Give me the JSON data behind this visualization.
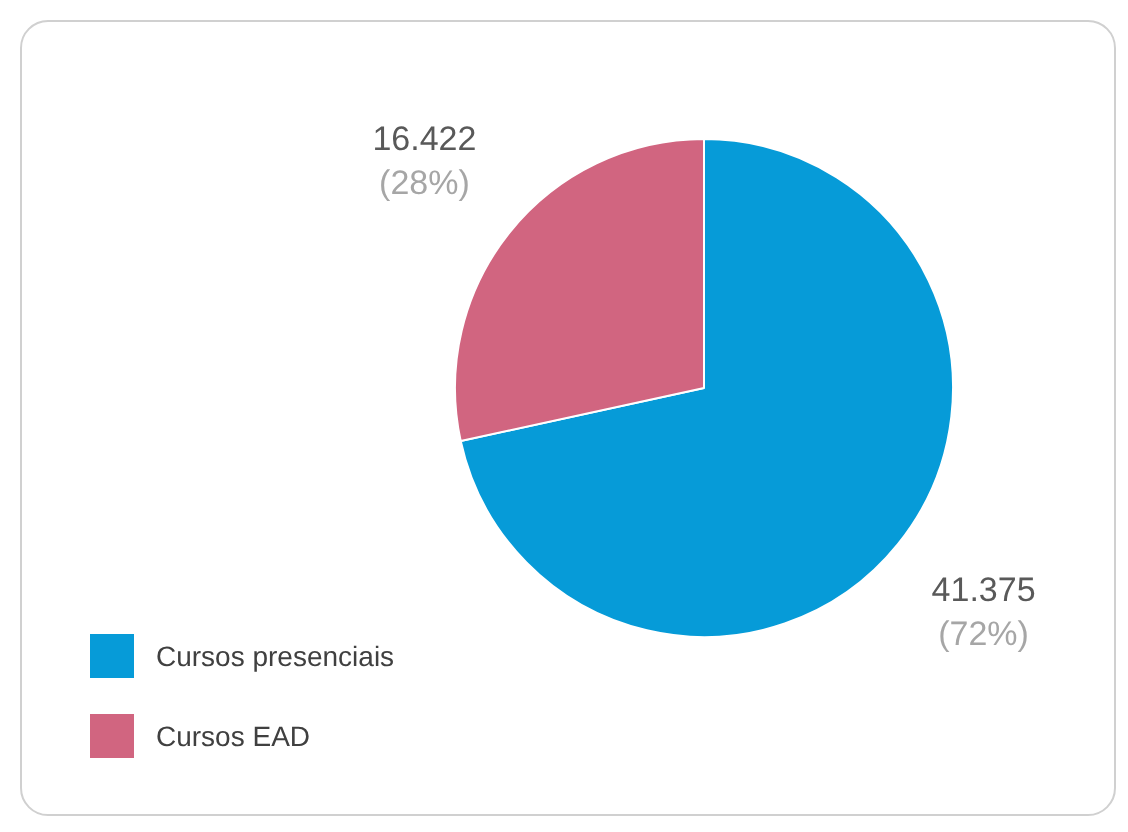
{
  "chart_data": {
    "type": "pie",
    "categories": [
      "Cursos presenciais",
      "Cursos EAD"
    ],
    "values": [
      41375,
      16422
    ],
    "colors": [
      "#069bd8",
      "#d16580"
    ],
    "value_labels": [
      "41.375\n(72%)",
      "16.422\n(28%)"
    ],
    "legend": "bottom left"
  }
}
